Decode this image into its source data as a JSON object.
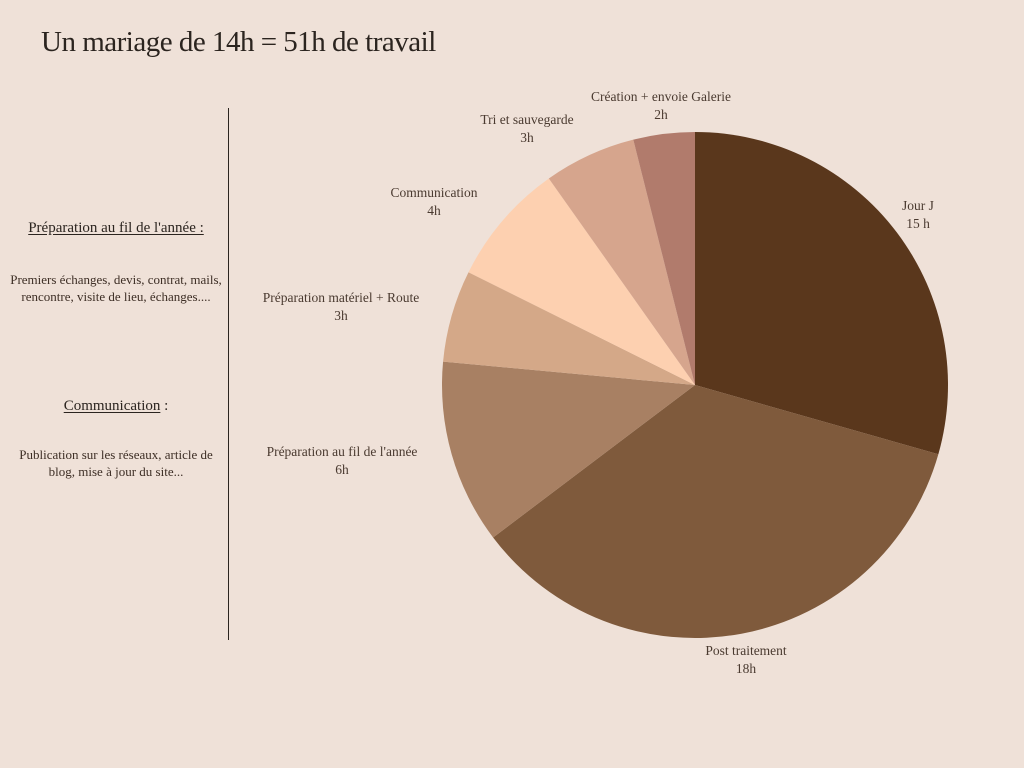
{
  "title": "Un mariage de 14h = 51h de travail",
  "sidebar": {
    "section1": {
      "heading": "Préparation au fil de l'année :",
      "text": "Premiers échanges, devis, contrat, mails, rencontre, visite de lieu, échanges...."
    },
    "section2": {
      "heading": "Communication",
      "heading_suffix": " :",
      "text": "Publication sur les réseaux, article de blog, mise à jour du site..."
    }
  },
  "chart_data": {
    "type": "pie",
    "title": "",
    "start_angle": "12 o'clock",
    "direction": "clockwise",
    "slices": [
      {
        "label": "Jour J",
        "value_label": "15 h",
        "value": 15,
        "color": "#5a371c"
      },
      {
        "label": "Post traitement",
        "value_label": "18h",
        "value": 18,
        "color": "#7f5a3c"
      },
      {
        "label": "Préparation au fil de l'année",
        "value_label": "6h",
        "value": 6,
        "color": "#a88063"
      },
      {
        "label": "Préparation matériel + Route",
        "value_label": "3h",
        "value": 3,
        "color": "#d4a888"
      },
      {
        "label": "Communication",
        "value_label": "4h",
        "value": 4,
        "color": "#fdd0b0"
      },
      {
        "label": "Tri et sauvegarde",
        "value_label": "3h",
        "value": 3,
        "color": "#d6a58d"
      },
      {
        "label": "Création + envoie Galerie",
        "value_label": "2h",
        "value": 2,
        "color": "#b17b6c"
      }
    ]
  }
}
